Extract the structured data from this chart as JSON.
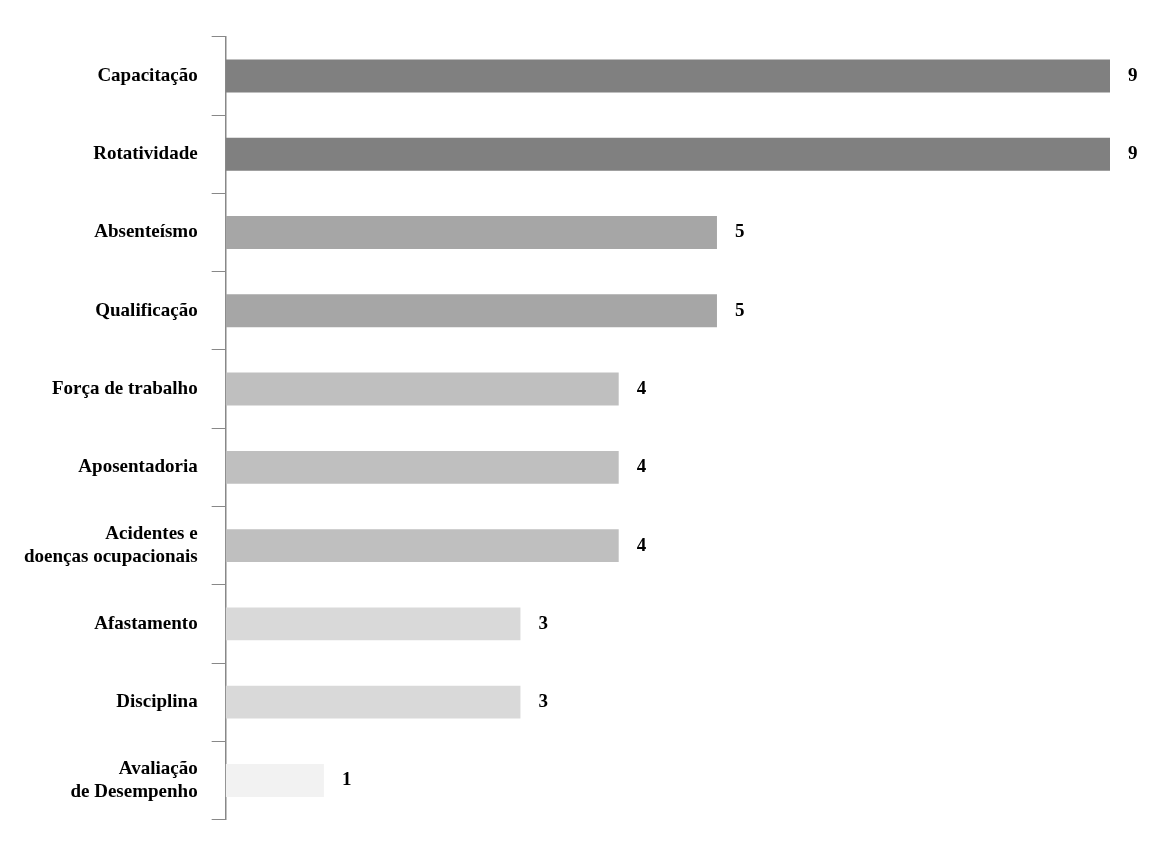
{
  "chart_data": {
    "type": "bar",
    "orientation": "horizontal",
    "categories": [
      "Capacitação",
      "Rotatividade",
      "Absenteísmo",
      "Qualificação",
      "Força de trabalho",
      "Aposentadoria",
      "Acidentes e\ndoenças ocupacionais",
      "Afastamento",
      "Disciplina",
      "Avaliação\nde Desempenho"
    ],
    "values": [
      9,
      9,
      5,
      5,
      4,
      4,
      4,
      3,
      3,
      1
    ],
    "colors": [
      "#808080",
      "#808080",
      "#a6a6a6",
      "#a6a6a6",
      "#bfbfbf",
      "#bfbfbf",
      "#bfbfbf",
      "#d9d9d9",
      "#d9d9d9",
      "#f2f2f2"
    ],
    "data_labels": true
  }
}
